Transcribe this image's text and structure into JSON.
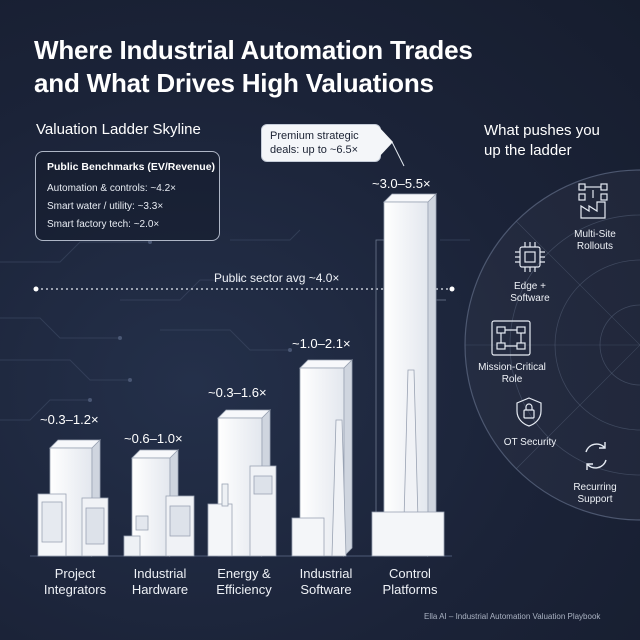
{
  "title": {
    "line1": "Where Industrial Automation Trades",
    "line2": "and What Drives High Valuations"
  },
  "left_label": "Valuation Ladder Skyline",
  "benchmarks": {
    "title": "Public Benchmarks (EV/Revenue)",
    "items": [
      "Automation & controls: ~4.2×",
      "Smart water / utility: ~3.3×",
      "Smart factory tech: ~2.0×"
    ]
  },
  "public_avg": "Public sector avg ~4.0×",
  "callout": "Premium strategic deals: up to ~6.5×",
  "categories": [
    {
      "name": "Project Integrators",
      "line1": "Project",
      "line2": "Integrators",
      "range": "~0.3–1.2×"
    },
    {
      "name": "Industrial Hardware",
      "line1": "Industrial",
      "line2": "Hardware",
      "range": "~0.6–1.0×"
    },
    {
      "name": "Energy & Efficiency",
      "line1": "Energy &",
      "line2": "Efficiency",
      "range": "~0.3–1.6×"
    },
    {
      "name": "Industrial Software",
      "line1": "Industrial",
      "line2": "Software",
      "range": "~1.0–2.1×"
    },
    {
      "name": "Control Platforms",
      "line1": "Control",
      "line2": "Platforms",
      "range": "~3.0–5.5×"
    }
  ],
  "drivers": {
    "title_line1": "What pushes you",
    "title_line2": "up the ladder",
    "items": [
      {
        "icon": "factory-network-icon",
        "line1": "Multi-Site",
        "line2": "Rollouts"
      },
      {
        "icon": "chip-icon",
        "line1": "Edge +",
        "line2": "Software"
      },
      {
        "icon": "flowchart-icon",
        "line1": "Mission-Critical",
        "line2": "Role"
      },
      {
        "icon": "shield-lock-icon",
        "line1": "OT Security",
        "line2": ""
      },
      {
        "icon": "cycle-arrows-icon",
        "line1": "Recurring",
        "line2": "Support"
      }
    ]
  },
  "credit": "Ella AI – Industrial Automation Valuation Playbook",
  "colors": {
    "background": "#1b2338",
    "building": "#f2f4f7",
    "text": "#ffffff",
    "accent_line": "#dde3ee"
  }
}
